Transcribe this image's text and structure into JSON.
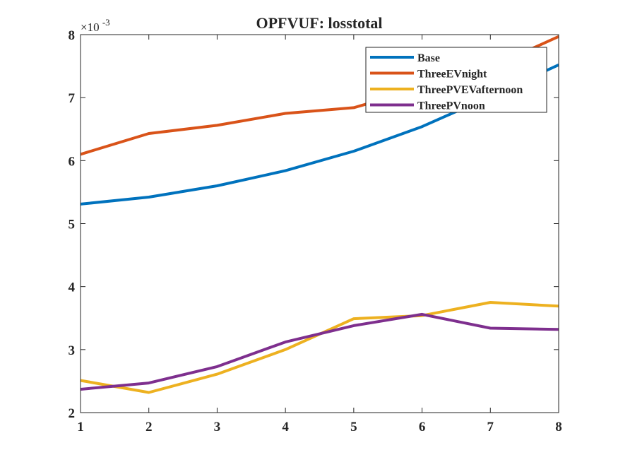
{
  "chart_data": {
    "type": "line",
    "title": "OPFVUF: losstotal",
    "xlabel": "",
    "ylabel": "",
    "x": [
      1,
      2,
      3,
      4,
      5,
      6,
      7,
      8
    ],
    "xlim": [
      1,
      8
    ],
    "ylim": [
      0.002,
      0.008
    ],
    "y_multiplier": {
      "base": "×10",
      "exponent": "-3"
    },
    "x_ticks": [
      "1",
      "2",
      "3",
      "4",
      "5",
      "6",
      "7",
      "8"
    ],
    "y_ticks": [
      "2",
      "3",
      "4",
      "5",
      "6",
      "7",
      "8"
    ],
    "y_tick_values": [
      0.002,
      0.003,
      0.004,
      0.005,
      0.006,
      0.007,
      0.008
    ],
    "grid": false,
    "legend_position": "top-right",
    "series": [
      {
        "name": "Base",
        "color": "#0072BD",
        "values": [
          0.00531,
          0.00542,
          0.0056,
          0.00584,
          0.00615,
          0.00654,
          0.00702,
          0.00752
        ]
      },
      {
        "name": "ThreeEVnight",
        "color": "#D95319",
        "values": [
          0.0061,
          0.00643,
          0.00656,
          0.00675,
          0.00684,
          0.00715,
          0.00748,
          0.00797
        ]
      },
      {
        "name": "ThreePVEVafternoon",
        "color": "#EDB120",
        "values": [
          0.00251,
          0.00232,
          0.00261,
          0.003,
          0.00349,
          0.00354,
          0.00375,
          0.00369
        ]
      },
      {
        "name": "ThreePVnoon",
        "color": "#7E2F8E",
        "values": [
          0.00237,
          0.00247,
          0.00273,
          0.00312,
          0.00338,
          0.00356,
          0.00334,
          0.00332
        ]
      }
    ]
  }
}
